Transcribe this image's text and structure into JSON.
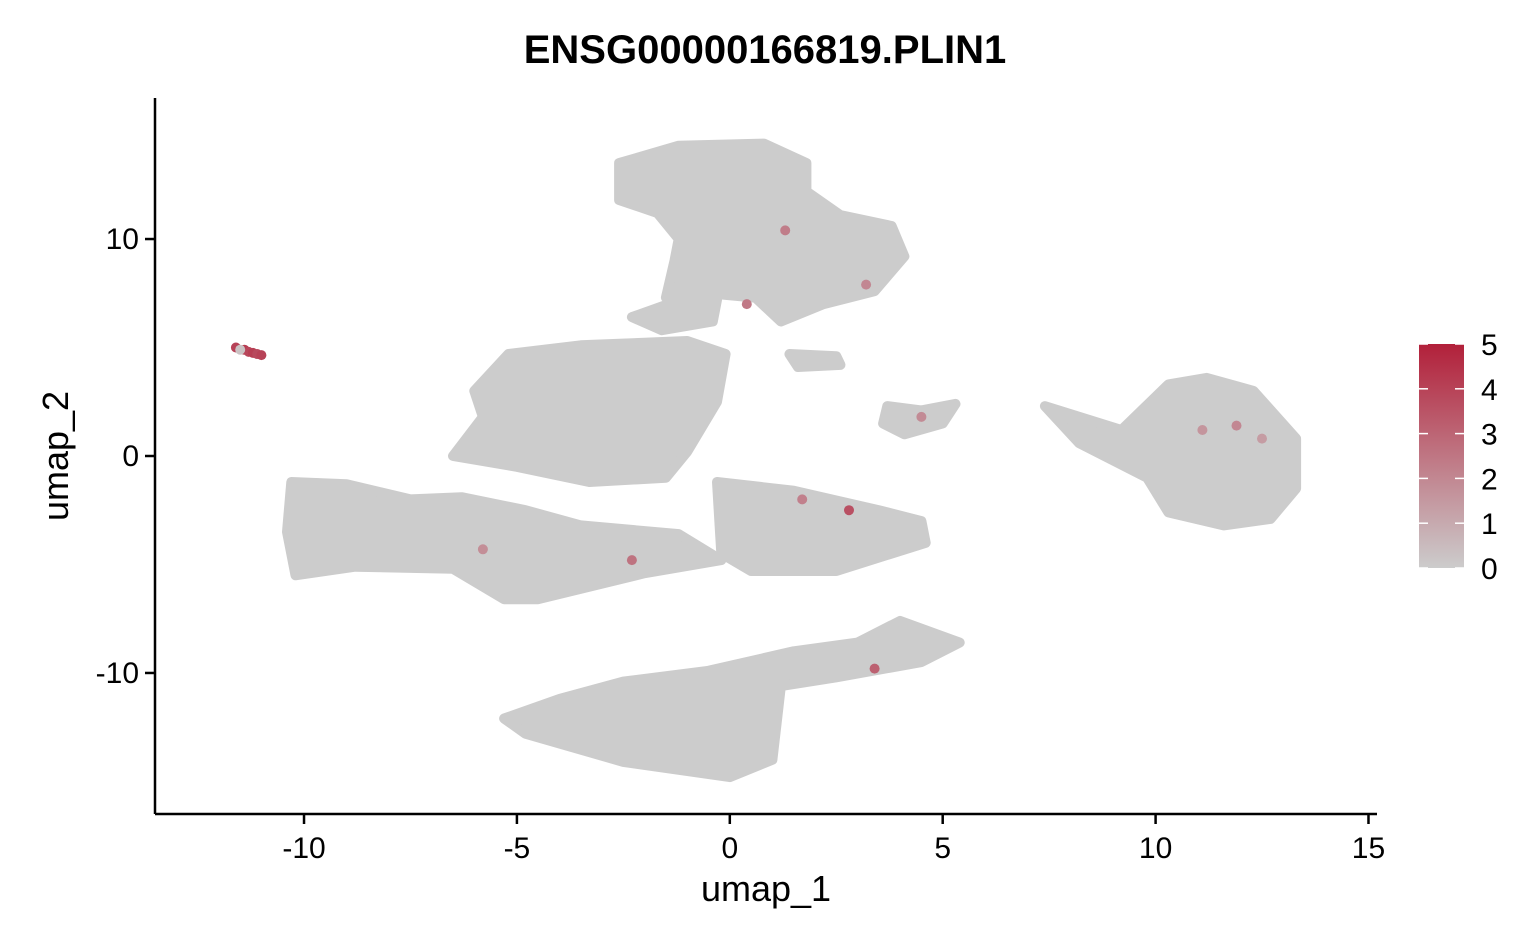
{
  "chart_data": {
    "type": "scatter",
    "title": "ENSG00000166819.PLIN1",
    "xlabel": "umap_1",
    "ylabel": "umap_2",
    "xlim": [
      -13.5,
      15.2
    ],
    "ylim": [
      -16.5,
      16.5
    ],
    "x_ticks": [
      -10,
      -5,
      0,
      5,
      10,
      15
    ],
    "y_ticks": [
      -10,
      0,
      10
    ],
    "x_tick_labels": [
      "-10",
      "-5",
      "0",
      "5",
      "10",
      "15"
    ],
    "y_tick_labels": [
      "-10",
      "0",
      "10"
    ],
    "grid": false,
    "legend_position": "right",
    "colorbar": {
      "min": 0,
      "max": 5,
      "ticks": [
        0,
        1,
        2,
        3,
        4,
        5
      ],
      "tick_labels": [
        "0",
        "1",
        "2",
        "3",
        "4",
        "5"
      ],
      "low_color": "#CCCCCC",
      "high_color": "#B2203A"
    },
    "base_color": "#CCCCCC",
    "clusters": [
      {
        "name": "top",
        "polygon": [
          [
            -2.6,
            13.5
          ],
          [
            -1.2,
            14.3
          ],
          [
            0.8,
            14.4
          ],
          [
            1.8,
            13.5
          ],
          [
            1.8,
            12.2
          ],
          [
            2.6,
            11.1
          ],
          [
            3.8,
            10.6
          ],
          [
            4.1,
            9.2
          ],
          [
            3.4,
            7.6
          ],
          [
            2.2,
            7.0
          ],
          [
            1.2,
            6.2
          ],
          [
            0.6,
            7.3
          ],
          [
            -0.5,
            7.5
          ],
          [
            -1.5,
            7.3
          ],
          [
            -1.3,
            9.0
          ],
          [
            -1.2,
            10.0
          ],
          [
            -1.7,
            11.2
          ],
          [
            -2.6,
            11.8
          ]
        ]
      },
      {
        "name": "central",
        "polygon": [
          [
            -6.0,
            3.0
          ],
          [
            -5.2,
            4.7
          ],
          [
            -3.5,
            5.1
          ],
          [
            -1.0,
            5.3
          ],
          [
            -0.1,
            4.7
          ],
          [
            -0.3,
            2.5
          ],
          [
            -1.0,
            0.2
          ],
          [
            -1.5,
            -1.0
          ],
          [
            -3.3,
            -1.2
          ],
          [
            -5.0,
            -0.5
          ],
          [
            -6.5,
            0.0
          ],
          [
            -5.8,
            1.8
          ]
        ]
      },
      {
        "name": "left-band",
        "polygon": [
          [
            -10.3,
            -1.2
          ],
          [
            -9.0,
            -1.3
          ],
          [
            -7.5,
            -2.0
          ],
          [
            -6.3,
            -1.9
          ],
          [
            -4.8,
            -2.5
          ],
          [
            -3.5,
            -3.2
          ],
          [
            -1.2,
            -3.6
          ],
          [
            -0.2,
            -4.8
          ],
          [
            -2.0,
            -5.4
          ],
          [
            -4.5,
            -6.6
          ],
          [
            -5.3,
            -6.6
          ],
          [
            -6.5,
            -5.2
          ],
          [
            -8.8,
            -5.1
          ],
          [
            -10.2,
            -5.5
          ],
          [
            -10.4,
            -3.5
          ]
        ]
      },
      {
        "name": "mid-right",
        "polygon": [
          [
            -0.3,
            -1.2
          ],
          [
            1.5,
            -1.6
          ],
          [
            3.5,
            -2.5
          ],
          [
            4.5,
            -3.0
          ],
          [
            4.6,
            -4.0
          ],
          [
            2.5,
            -5.3
          ],
          [
            0.5,
            -5.3
          ],
          [
            -0.2,
            -4.5
          ]
        ]
      },
      {
        "name": "bottom",
        "polygon": [
          [
            -5.3,
            -12.1
          ],
          [
            -4.0,
            -11.2
          ],
          [
            -2.5,
            -10.4
          ],
          [
            -0.5,
            -9.9
          ],
          [
            1.5,
            -9.0
          ],
          [
            3.0,
            -8.6
          ],
          [
            4.0,
            -7.6
          ],
          [
            5.4,
            -8.6
          ],
          [
            4.5,
            -9.5
          ],
          [
            2.5,
            -10.2
          ],
          [
            1.2,
            -10.6
          ],
          [
            1.0,
            -14.0
          ],
          [
            0.0,
            -14.8
          ],
          [
            -2.5,
            -14.1
          ],
          [
            -4.8,
            -12.8
          ]
        ]
      },
      {
        "name": "far-right",
        "polygon": [
          [
            7.4,
            2.3
          ],
          [
            9.2,
            1.2
          ],
          [
            10.3,
            3.3
          ],
          [
            11.2,
            3.6
          ],
          [
            12.3,
            3.0
          ],
          [
            13.3,
            0.8
          ],
          [
            13.3,
            -1.5
          ],
          [
            12.7,
            -2.9
          ],
          [
            11.6,
            -3.2
          ],
          [
            10.3,
            -2.6
          ],
          [
            9.8,
            -1.0
          ],
          [
            8.2,
            0.6
          ]
        ]
      },
      {
        "name": "small-mid",
        "polygon": [
          [
            3.7,
            2.3
          ],
          [
            4.5,
            2.1
          ],
          [
            5.3,
            2.4
          ],
          [
            5.0,
            1.5
          ],
          [
            4.1,
            1.0
          ],
          [
            3.6,
            1.5
          ]
        ]
      },
      {
        "name": "small-top",
        "polygon": [
          [
            1.4,
            4.7
          ],
          [
            2.5,
            4.6
          ],
          [
            2.6,
            4.2
          ],
          [
            1.6,
            4.1
          ]
        ]
      },
      {
        "name": "bridge",
        "polygon": [
          [
            -2.3,
            6.4
          ],
          [
            -1.3,
            7.1
          ],
          [
            -0.3,
            7.2
          ],
          [
            -0.4,
            6.2
          ],
          [
            -1.6,
            5.8
          ]
        ]
      }
    ],
    "points": [
      {
        "x": -11.6,
        "y": 5.0,
        "value": 4.0
      },
      {
        "x": -11.4,
        "y": 4.9,
        "value": 4.2
      },
      {
        "x": -11.3,
        "y": 4.8,
        "value": 3.9
      },
      {
        "x": -11.2,
        "y": 4.75,
        "value": 4.1
      },
      {
        "x": -11.1,
        "y": 4.7,
        "value": 3.8
      },
      {
        "x": -11.0,
        "y": 4.65,
        "value": 4.0
      },
      {
        "x": -11.5,
        "y": 4.9,
        "value": 0.3
      },
      {
        "x": 11.9,
        "y": 1.4,
        "value": 2.0
      },
      {
        "x": 11.1,
        "y": 1.2,
        "value": 1.6
      },
      {
        "x": 12.5,
        "y": 0.8,
        "value": 1.4
      },
      {
        "x": 4.5,
        "y": 1.8,
        "value": 1.9
      },
      {
        "x": 0.4,
        "y": 7.0,
        "value": 2.4
      },
      {
        "x": 2.8,
        "y": -2.5,
        "value": 3.6
      },
      {
        "x": 1.7,
        "y": -2.0,
        "value": 2.2
      },
      {
        "x": 3.4,
        "y": -9.8,
        "value": 3.1
      },
      {
        "x": -2.3,
        "y": -4.8,
        "value": 2.6
      },
      {
        "x": -5.8,
        "y": -4.3,
        "value": 1.8
      },
      {
        "x": 1.3,
        "y": 10.4,
        "value": 2.3
      },
      {
        "x": 3.2,
        "y": 7.9,
        "value": 2.0
      }
    ]
  }
}
